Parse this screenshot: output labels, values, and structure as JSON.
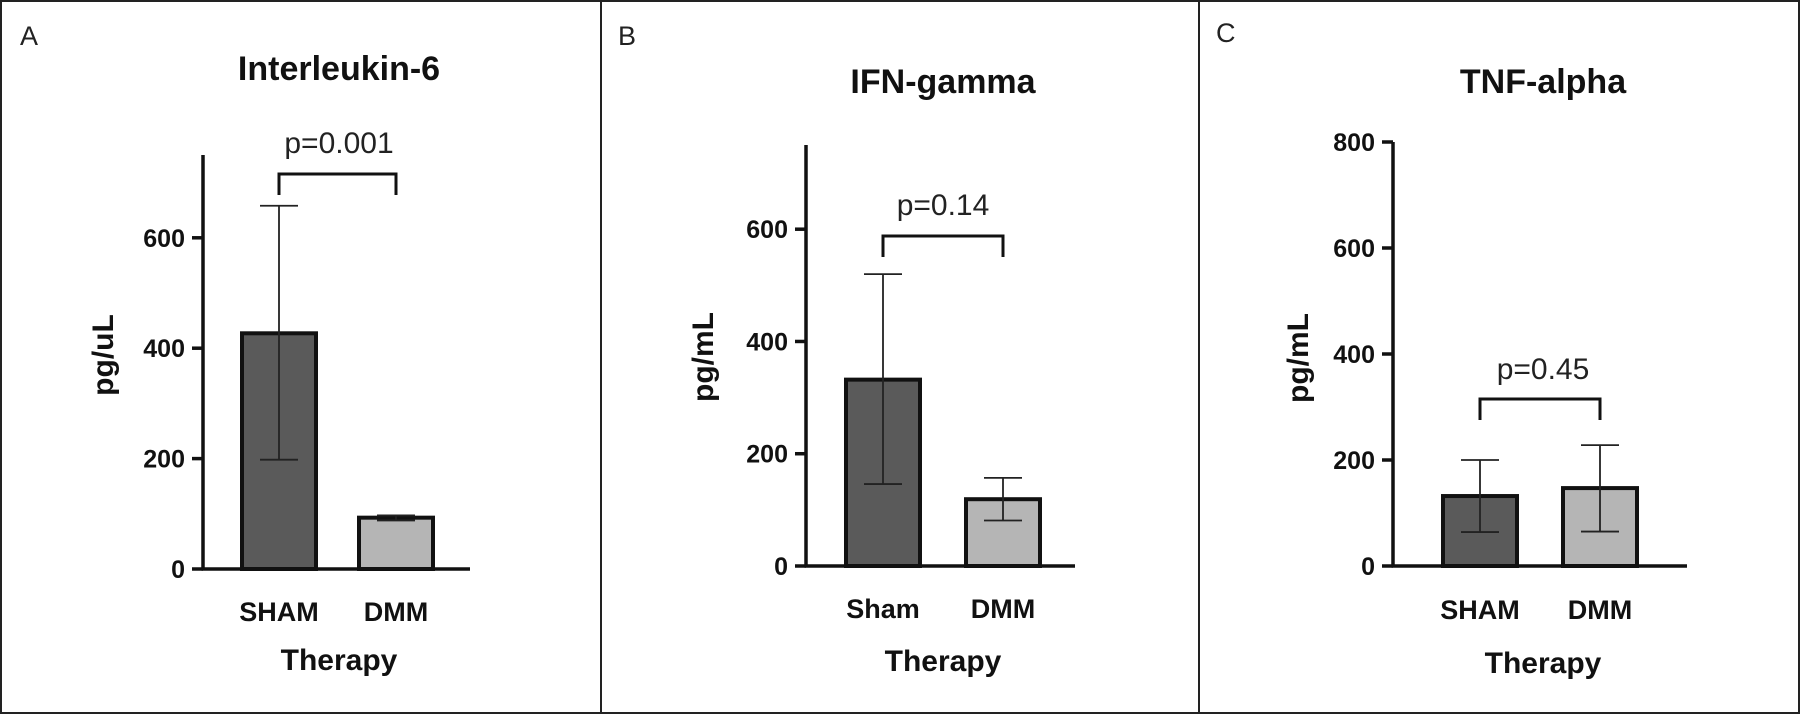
{
  "chart_data": [
    {
      "type": "bar",
      "panel_letter": "A",
      "title": "Interleukin-6",
      "xlabel": "Therapy",
      "ylabel": "pg/uL",
      "categories": [
        "SHAM",
        "DMM"
      ],
      "values": [
        427,
        93
      ],
      "error_low": [
        198,
        88
      ],
      "error_high": [
        658,
        97
      ],
      "ylim": [
        0,
        750
      ],
      "yticks": [
        0,
        200,
        400,
        600
      ],
      "annotation": "p=0.001",
      "bar_colors": [
        "#5a5a5a",
        "#b5b5b5"
      ]
    },
    {
      "type": "bar",
      "panel_letter": "B",
      "title": "IFN-gamma",
      "xlabel": "Therapy",
      "ylabel": "pg/mL",
      "categories": [
        "Sham",
        "DMM"
      ],
      "values": [
        332,
        119
      ],
      "error_low": [
        146,
        81
      ],
      "error_high": [
        520,
        157
      ],
      "ylim": [
        0,
        750
      ],
      "yticks": [
        0,
        200,
        400,
        600
      ],
      "annotation": "p=0.14",
      "bar_colors": [
        "#5a5a5a",
        "#b5b5b5"
      ]
    },
    {
      "type": "bar",
      "panel_letter": "C",
      "title": "TNF-alpha",
      "xlabel": "Therapy",
      "ylabel": "pg/mL",
      "categories": [
        "SHAM",
        "DMM"
      ],
      "values": [
        132,
        147
      ],
      "error_low": [
        64,
        65
      ],
      "error_high": [
        200,
        228
      ],
      "ylim": [
        0,
        800
      ],
      "yticks": [
        0,
        200,
        400,
        600,
        800
      ],
      "annotation": "p=0.45",
      "bar_colors": [
        "#5a5a5a",
        "#b5b5b5"
      ]
    }
  ]
}
